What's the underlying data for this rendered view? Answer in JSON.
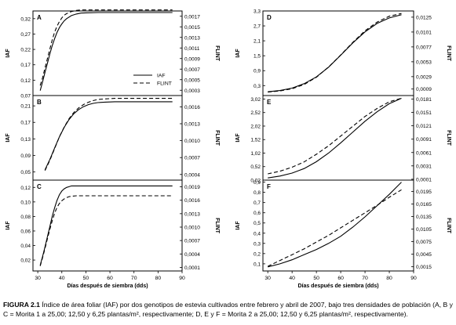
{
  "caption": {
    "label": "FIGURA 2.1",
    "text": "Índice de área foliar (IAF) por dos genotipos de estevia cultivados entre febrero y abril de 2007, bajo tres densidades de población (A, B y C = Morita 1 a 25,00; 12,50 y 6,25 plantas/m², respectivamente; D, E y F = Morita 2 a 25,00; 12,50 y 6,25 plantas/m², respectivamente)."
  },
  "legend": {
    "items": [
      "IAF",
      "FLINT"
    ],
    "placement": "right-center of panel A"
  },
  "colors": {
    "line": "#000000",
    "frame": "#000000",
    "background": "#ffffff"
  },
  "chart_data": [
    {
      "panel": "A",
      "type": "line",
      "xlabel": "",
      "ylabel": "IAF",
      "y2label": "FLINT",
      "xlim": [
        28,
        90
      ],
      "ylim": [
        0.07,
        0.345
      ],
      "yticks": [
        "0,07",
        "0,12",
        "0,17",
        "0,22",
        "0,27",
        "0,32"
      ],
      "yticks_v": [
        0.07,
        0.12,
        0.17,
        0.22,
        0.27,
        0.32
      ],
      "y2lim": [
        0.0002,
        0.0018
      ],
      "y2ticks": [
        "0,0003",
        "0,0005",
        "0,0007",
        "0,0009",
        "0,0011",
        "0,0013",
        "0,0015",
        "0,0017"
      ],
      "y2ticks_v": [
        0.0003,
        0.0005,
        0.0007,
        0.0009,
        0.0011,
        0.0013,
        0.0015,
        0.0017
      ],
      "xticks": [],
      "series": [
        {
          "name": "IAF",
          "dash": "solid",
          "axis": "left",
          "x": [
            31,
            32,
            33,
            34,
            35,
            36,
            37,
            38,
            39,
            40,
            41,
            42,
            44,
            46,
            48,
            50,
            55,
            60,
            70,
            80,
            86
          ],
          "y": [
            0.086,
            0.115,
            0.145,
            0.175,
            0.205,
            0.232,
            0.255,
            0.275,
            0.291,
            0.303,
            0.313,
            0.32,
            0.33,
            0.335,
            0.338,
            0.339,
            0.34,
            0.34,
            0.34,
            0.34,
            0.34
          ]
        },
        {
          "name": "FLINT",
          "dash": "dashed",
          "axis": "right",
          "x": [
            31,
            32,
            33,
            34,
            35,
            36,
            37,
            38,
            39,
            40,
            41,
            42,
            44,
            46,
            48,
            50,
            55,
            60,
            70,
            80,
            86
          ],
          "y": [
            0.00039,
            0.00054,
            0.00072,
            0.0009,
            0.00108,
            0.00125,
            0.0014,
            0.00151,
            0.0016,
            0.00167,
            0.00172,
            0.00175,
            0.00179,
            0.00181,
            0.00182,
            0.00182,
            0.00182,
            0.00182,
            0.00182,
            0.00182,
            0.00182
          ]
        }
      ]
    },
    {
      "panel": "B",
      "type": "line",
      "xlabel": "",
      "ylabel": "IAF",
      "y2label": "FLINT",
      "xlim": [
        28,
        90
      ],
      "ylim": [
        0.03,
        0.235
      ],
      "yticks": [
        "0,05",
        "0,09",
        "0,13",
        "0,17",
        "0,21"
      ],
      "yticks_v": [
        0.05,
        0.09,
        0.13,
        0.17,
        0.21
      ],
      "y2lim": [
        0.0003,
        0.0018
      ],
      "y2ticks": [
        "0,0004",
        "0,0007",
        "0,0010",
        "0,0013",
        "0,0016"
      ],
      "y2ticks_v": [
        0.0004,
        0.0007,
        0.001,
        0.0013,
        0.0016
      ],
      "xticks": [],
      "series": [
        {
          "name": "IAF",
          "dash": "solid",
          "axis": "left",
          "x": [
            33,
            35,
            37,
            39,
            41,
            43,
            45,
            47,
            49,
            51,
            53,
            55,
            58,
            62,
            66,
            70,
            80,
            86
          ],
          "y": [
            0.055,
            0.08,
            0.108,
            0.135,
            0.158,
            0.177,
            0.191,
            0.201,
            0.208,
            0.213,
            0.216,
            0.218,
            0.219,
            0.22,
            0.22,
            0.22,
            0.22,
            0.22
          ]
        },
        {
          "name": "FLINT",
          "dash": "dashed",
          "axis": "right",
          "x": [
            33,
            35,
            37,
            39,
            41,
            43,
            45,
            47,
            49,
            51,
            53,
            55,
            58,
            62,
            66,
            70,
            80,
            86
          ],
          "y": [
            0.00047,
            0.00065,
            0.00086,
            0.00107,
            0.00124,
            0.00139,
            0.0015,
            0.00158,
            0.00164,
            0.00168,
            0.00171,
            0.00173,
            0.00174,
            0.00175,
            0.00175,
            0.00175,
            0.00175,
            0.00175
          ]
        }
      ]
    },
    {
      "panel": "C",
      "type": "line",
      "xlabel": "Días después de siembra (dds)",
      "ylabel": "IAF",
      "y2label": "FLINT",
      "xlim": [
        28,
        90
      ],
      "ylim": [
        0.005,
        0.13
      ],
      "yticks": [
        "0,02",
        "0,04",
        "0,06",
        "0,08",
        "0,10",
        "0,12"
      ],
      "yticks_v": [
        0.02,
        0.04,
        0.06,
        0.08,
        0.1,
        0.12
      ],
      "y2lim": [
        2e-05,
        0.00205
      ],
      "y2ticks": [
        "0,0001",
        "0,0004",
        "0,0007",
        "0,0010",
        "0,0013",
        "0,0016",
        "0,0019"
      ],
      "y2ticks_v": [
        0.0001,
        0.0004,
        0.0007,
        0.001,
        0.0013,
        0.0016,
        0.0019
      ],
      "xticks": [
        30,
        40,
        50,
        60,
        70,
        80,
        90
      ],
      "series": [
        {
          "name": "IAF",
          "dash": "solid",
          "axis": "left",
          "x": [
            31,
            32,
            33,
            34,
            35,
            36,
            37,
            38,
            39,
            40,
            41,
            42,
            43,
            44,
            46,
            48,
            50,
            55,
            60,
            70,
            80,
            86
          ],
          "y": [
            0.013,
            0.025,
            0.038,
            0.052,
            0.066,
            0.08,
            0.092,
            0.102,
            0.11,
            0.115,
            0.118,
            0.12,
            0.121,
            0.122,
            0.122,
            0.122,
            0.122,
            0.122,
            0.122,
            0.122,
            0.122,
            0.122
          ]
        },
        {
          "name": "FLINT",
          "dash": "dashed",
          "axis": "right",
          "x": [
            31,
            32,
            33,
            34,
            35,
            36,
            37,
            38,
            39,
            40,
            41,
            42,
            43,
            44,
            46,
            48,
            50,
            55,
            60,
            70,
            80,
            86
          ],
          "y": [
            0.00013,
            0.00032,
            0.00052,
            0.00074,
            0.00095,
            0.00114,
            0.00131,
            0.00144,
            0.00153,
            0.00159,
            0.00163,
            0.00166,
            0.00168,
            0.00169,
            0.0017,
            0.0017,
            0.0017,
            0.0017,
            0.0017,
            0.0017,
            0.0017,
            0.0017
          ]
        }
      ]
    },
    {
      "panel": "D",
      "type": "line",
      "xlabel": "",
      "ylabel": "IAF",
      "y2label": "FLINT",
      "xlim": [
        28,
        90
      ],
      "ylim": [
        -0.1,
        3.3
      ],
      "yticks": [
        "0,3",
        "0,9",
        "1,5",
        "2,1",
        "2,7",
        "3,3"
      ],
      "yticks_v": [
        0.3,
        0.9,
        1.5,
        2.1,
        2.7,
        3.3
      ],
      "y2lim": [
        -0.00015,
        0.0135
      ],
      "y2ticks": [
        "0,0009",
        "0,0029",
        "0,0053",
        "0,0077",
        "0,0101",
        "0,0125"
      ],
      "y2ticks_v": [
        0.0009,
        0.0029,
        0.0053,
        0.0077,
        0.0101,
        0.0125
      ],
      "xticks": [],
      "series": [
        {
          "name": "IAF",
          "dash": "solid",
          "axis": "left",
          "x": [
            30,
            35,
            40,
            45,
            50,
            55,
            60,
            65,
            70,
            75,
            80,
            85
          ],
          "y": [
            0.05,
            0.1,
            0.2,
            0.38,
            0.65,
            1.04,
            1.52,
            2.02,
            2.46,
            2.8,
            3.02,
            3.15
          ]
        },
        {
          "name": "FLINT",
          "dash": "dashed",
          "axis": "right",
          "x": [
            30,
            35,
            40,
            45,
            50,
            55,
            60,
            65,
            70,
            75,
            80,
            85
          ],
          "y": [
            0.0004,
            0.0006,
            0.00095,
            0.00165,
            0.0028,
            0.00445,
            0.0064,
            0.00845,
            0.0103,
            0.0117,
            0.01265,
            0.0131
          ]
        }
      ]
    },
    {
      "panel": "E",
      "type": "line",
      "xlabel": "",
      "ylabel": "IAF",
      "y2label": "FLINT",
      "xlim": [
        28,
        90
      ],
      "ylim": [
        0.02,
        3.15
      ],
      "yticks": [
        "0,02",
        "0,52",
        "1,02",
        "1,52",
        "2,02",
        "2,52",
        "3,02"
      ],
      "yticks_v": [
        0.02,
        0.52,
        1.02,
        1.52,
        2.02,
        2.52,
        3.02
      ],
      "y2lim": [
        -0.0001,
        0.0189
      ],
      "y2ticks": [
        "0,0001",
        "0,0031",
        "0,0061",
        "0,0091",
        "0,0121",
        "0,0151",
        "0,0181"
      ],
      "y2ticks_v": [
        0.0001,
        0.0031,
        0.0061,
        0.0091,
        0.0121,
        0.0151,
        0.0181
      ],
      "xticks": [],
      "series": [
        {
          "name": "IAF",
          "dash": "solid",
          "axis": "left",
          "x": [
            30,
            35,
            40,
            45,
            50,
            55,
            60,
            65,
            70,
            75,
            80,
            85
          ],
          "y": [
            0.1,
            0.17,
            0.28,
            0.45,
            0.7,
            1.02,
            1.4,
            1.8,
            2.2,
            2.55,
            2.85,
            3.05
          ]
        },
        {
          "name": "FLINT",
          "dash": "dashed",
          "axis": "right",
          "x": [
            30,
            35,
            40,
            45,
            50,
            55,
            60,
            65,
            70,
            75,
            80,
            85
          ],
          "y": [
            0.0013,
            0.0019,
            0.0028,
            0.004,
            0.0057,
            0.0076,
            0.0098,
            0.012,
            0.0142,
            0.016,
            0.0175,
            0.0183
          ]
        }
      ]
    },
    {
      "panel": "F",
      "type": "line",
      "xlabel": "Días después de siembra (dds)",
      "ylabel": "IAF",
      "y2label": "FLINT",
      "xlim": [
        28,
        90
      ],
      "ylim": [
        0.03,
        0.92
      ],
      "yticks": [
        "0,1",
        "0,2",
        "0,3",
        "0,4",
        "0,5",
        "0,6",
        "0,7",
        "0,8",
        "0,9"
      ],
      "yticks_v": [
        0.1,
        0.2,
        0.3,
        0.4,
        0.5,
        0.6,
        0.7,
        0.8,
        0.9
      ],
      "y2lim": [
        0.0005,
        0.0222
      ],
      "y2ticks": [
        "0,0015",
        "0,0045",
        "0,0075",
        "0,0105",
        "0,0135",
        "0,0165",
        "0,0195"
      ],
      "y2ticks_v": [
        0.0015,
        0.0045,
        0.0075,
        0.0105,
        0.0135,
        0.0165,
        0.0195
      ],
      "xticks": [
        30,
        40,
        50,
        60,
        70,
        80,
        90
      ],
      "series": [
        {
          "name": "IAF",
          "dash": "solid",
          "axis": "left",
          "x": [
            30,
            35,
            40,
            45,
            50,
            55,
            60,
            65,
            70,
            75,
            80,
            85
          ],
          "y": [
            0.07,
            0.1,
            0.14,
            0.19,
            0.24,
            0.3,
            0.37,
            0.46,
            0.56,
            0.67,
            0.78,
            0.9
          ]
        },
        {
          "name": "FLINT",
          "dash": "dashed",
          "axis": "right",
          "x": [
            30,
            35,
            40,
            45,
            50,
            55,
            60,
            65,
            70,
            75,
            80,
            85
          ],
          "y": [
            0.0016,
            0.003,
            0.0044,
            0.0058,
            0.0074,
            0.009,
            0.0108,
            0.0126,
            0.0144,
            0.0162,
            0.0181,
            0.0199
          ]
        }
      ]
    }
  ]
}
